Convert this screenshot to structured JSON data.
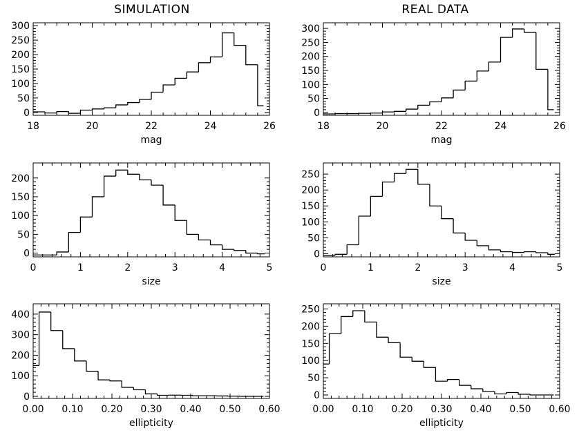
{
  "column_titles": {
    "left": "SIMULATION",
    "right": "REAL DATA"
  },
  "chart_data": [
    {
      "type": "histogram",
      "column": "SIMULATION",
      "xlabel": "mag",
      "xlim": [
        18,
        26
      ],
      "ylim": [
        -10,
        310
      ],
      "xticks": [
        "18",
        "20",
        "22",
        "24",
        "26"
      ],
      "yticks": [
        "0",
        "50",
        "100",
        "150",
        "200",
        "250",
        "300"
      ],
      "bin_edges": [
        18.0,
        18.4,
        18.8,
        19.2,
        19.6,
        20.0,
        20.4,
        20.8,
        21.2,
        21.6,
        22.0,
        22.4,
        22.8,
        23.2,
        23.6,
        24.0,
        24.4,
        24.8,
        25.2,
        25.6,
        25.8
      ],
      "counts": [
        2,
        -2,
        3,
        -3,
        8,
        12,
        16,
        26,
        34,
        45,
        70,
        95,
        118,
        140,
        172,
        192,
        275,
        232,
        165,
        23
      ]
    },
    {
      "type": "histogram",
      "column": "REAL DATA",
      "xlabel": "mag",
      "xlim": [
        18,
        26
      ],
      "ylim": [
        -10,
        320
      ],
      "xticks": [
        "18",
        "20",
        "22",
        "24",
        "26"
      ],
      "yticks": [
        "0",
        "50",
        "100",
        "150",
        "200",
        "250",
        "300"
      ],
      "bin_edges": [
        18.0,
        18.4,
        18.8,
        19.2,
        19.6,
        20.0,
        20.4,
        20.8,
        21.2,
        21.6,
        22.0,
        22.4,
        22.8,
        23.2,
        23.6,
        24.0,
        24.4,
        24.8,
        25.2,
        25.6,
        25.8
      ],
      "counts": [
        -5,
        -4,
        -4,
        -3,
        -2,
        2,
        4,
        12,
        26,
        38,
        52,
        80,
        112,
        148,
        180,
        268,
        298,
        286,
        154,
        10
      ]
    },
    {
      "type": "histogram",
      "column": "SIMULATION",
      "xlabel": "size",
      "xlim": [
        0,
        5
      ],
      "ylim": [
        -10,
        240
      ],
      "xticks": [
        "0",
        "1",
        "2",
        "3",
        "4",
        "5"
      ],
      "yticks": [
        "0",
        "50",
        "100",
        "150",
        "200"
      ],
      "bin_edges": [
        0.0,
        0.25,
        0.5,
        0.75,
        1.0,
        1.25,
        1.5,
        1.75,
        2.0,
        2.25,
        2.5,
        2.75,
        3.0,
        3.25,
        3.5,
        3.75,
        4.0,
        4.25,
        4.5,
        4.75,
        4.9
      ],
      "counts": [
        -5,
        -5,
        3,
        55,
        96,
        150,
        205,
        221,
        210,
        195,
        181,
        128,
        87,
        50,
        35,
        22,
        10,
        7,
        0,
        -2
      ]
    },
    {
      "type": "histogram",
      "column": "REAL DATA",
      "xlabel": "size",
      "xlim": [
        0,
        5
      ],
      "ylim": [
        -10,
        285
      ],
      "xticks": [
        "0",
        "1",
        "2",
        "3",
        "4",
        "5"
      ],
      "yticks": [
        "0",
        "50",
        "100",
        "150",
        "200",
        "250"
      ],
      "bin_edges": [
        0.0,
        0.25,
        0.5,
        0.75,
        1.0,
        1.25,
        1.5,
        1.75,
        2.0,
        2.25,
        2.5,
        2.75,
        3.0,
        3.25,
        3.5,
        3.75,
        4.0,
        4.25,
        4.5,
        4.75,
        4.9
      ],
      "counts": [
        -5,
        -2,
        28,
        118,
        180,
        225,
        252,
        265,
        218,
        150,
        110,
        65,
        42,
        25,
        12,
        6,
        4,
        6,
        3,
        -2
      ]
    },
    {
      "type": "histogram",
      "column": "SIMULATION",
      "xlabel": "ellipticity",
      "xlim": [
        0,
        0.6
      ],
      "ylim": [
        -10,
        450
      ],
      "xticks": [
        "0.00",
        "0.10",
        "0.20",
        "0.30",
        "0.40",
        "0.50",
        "0.60"
      ],
      "yticks": [
        "0",
        "100",
        "200",
        "300",
        "400"
      ],
      "bin_edges": [
        0.0,
        0.015,
        0.045,
        0.075,
        0.105,
        0.135,
        0.165,
        0.195,
        0.225,
        0.255,
        0.285,
        0.315,
        0.345,
        0.375,
        0.405,
        0.435,
        0.465,
        0.495,
        0.525,
        0.555,
        0.585
      ],
      "counts": [
        150,
        410,
        320,
        232,
        172,
        122,
        80,
        75,
        44,
        32,
        12,
        5,
        6,
        5,
        3,
        3,
        2,
        1,
        0,
        0
      ]
    },
    {
      "type": "histogram",
      "column": "REAL DATA",
      "xlabel": "ellipticity",
      "xlim": [
        0,
        0.6
      ],
      "ylim": [
        -10,
        265
      ],
      "xticks": [
        "0.00",
        "0.10",
        "0.20",
        "0.30",
        "0.40",
        "0.50",
        "0.60"
      ],
      "yticks": [
        "0",
        "50",
        "100",
        "150",
        "200",
        "250"
      ],
      "bin_edges": [
        0.0,
        0.015,
        0.045,
        0.075,
        0.105,
        0.135,
        0.165,
        0.195,
        0.225,
        0.255,
        0.285,
        0.315,
        0.345,
        0.375,
        0.405,
        0.435,
        0.465,
        0.495,
        0.525,
        0.555,
        0.585
      ],
      "counts": [
        90,
        178,
        228,
        245,
        212,
        168,
        152,
        110,
        98,
        80,
        40,
        45,
        28,
        18,
        10,
        3,
        7,
        2,
        0,
        0
      ]
    }
  ]
}
